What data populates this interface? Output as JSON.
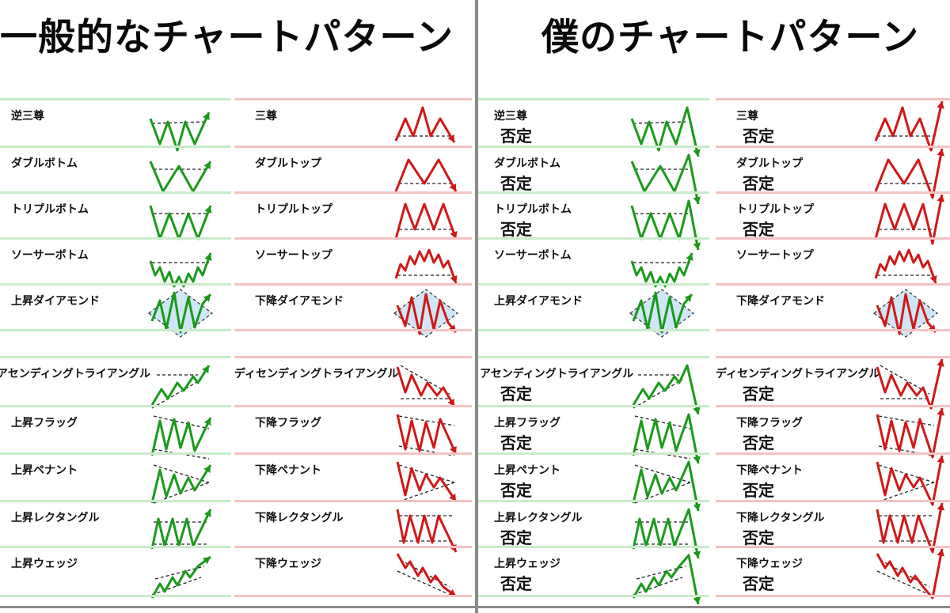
{
  "left_panel": {
    "title": "一般的なチャートパターン",
    "bullish": [
      {
        "label": "逆三尊",
        "shape": "inverse-head-shoulders-icon"
      },
      {
        "label": "ダブルボトム",
        "shape": "double-bottom-icon"
      },
      {
        "label": "トリプルボトム",
        "shape": "triple-bottom-icon"
      },
      {
        "label": "ソーサーボトム",
        "shape": "saucer-bottom-icon"
      },
      {
        "label": "上昇ダイアモンド",
        "shape": "bullish-diamond-icon"
      },
      {
        "label": "アセンディングトライアングル",
        "shape": "ascending-triangle-icon"
      },
      {
        "label": "上昇フラッグ",
        "shape": "bull-flag-icon"
      },
      {
        "label": "上昇ペナント",
        "shape": "bull-pennant-icon"
      },
      {
        "label": "上昇レクタングル",
        "shape": "bull-rectangle-icon"
      },
      {
        "label": "上昇ウェッジ",
        "shape": "rising-wedge-icon"
      }
    ],
    "bearish": [
      {
        "label": "三尊",
        "shape": "head-shoulders-icon"
      },
      {
        "label": "ダブルトップ",
        "shape": "double-top-icon"
      },
      {
        "label": "トリプルトップ",
        "shape": "triple-top-icon"
      },
      {
        "label": "ソーサートップ",
        "shape": "saucer-top-icon"
      },
      {
        "label": "下降ダイアモンド",
        "shape": "bearish-diamond-icon"
      },
      {
        "label": "ディセンディングトライアングル",
        "shape": "descending-triangle-icon"
      },
      {
        "label": "下降フラッグ",
        "shape": "bear-flag-icon"
      },
      {
        "label": "下降ペナント",
        "shape": "bear-pennant-icon"
      },
      {
        "label": "下降レクタングル",
        "shape": "bear-rectangle-icon"
      },
      {
        "label": "下降ウェッジ",
        "shape": "falling-wedge-icon"
      }
    ]
  },
  "right_panel": {
    "title": "僕のチャートパターン",
    "negate_label": "否定",
    "bullish": [
      {
        "label": "逆三尊",
        "negated": true
      },
      {
        "label": "ダブルボトム",
        "negated": true
      },
      {
        "label": "トリプルボトム",
        "negated": true
      },
      {
        "label": "ソーサーボトム",
        "negated": false
      },
      {
        "label": "上昇ダイアモンド",
        "negated": false
      },
      {
        "label": "アセンディングトライアングル",
        "negated": true
      },
      {
        "label": "上昇フラッグ",
        "negated": true
      },
      {
        "label": "上昇ペナント",
        "negated": true
      },
      {
        "label": "上昇レクタングル",
        "negated": true
      },
      {
        "label": "上昇ウェッジ",
        "negated": true
      }
    ],
    "bearish": [
      {
        "label": "三尊",
        "negated": true
      },
      {
        "label": "ダブルトップ",
        "negated": true
      },
      {
        "label": "トリプルトップ",
        "negated": true
      },
      {
        "label": "ソーサートップ",
        "negated": false
      },
      {
        "label": "下降ダイアモンド",
        "negated": false
      },
      {
        "label": "ディセンディングトライアングル",
        "negated": true
      },
      {
        "label": "下降フラッグ",
        "negated": true
      },
      {
        "label": "下降ペナント",
        "negated": true
      },
      {
        "label": "下降レクタングル",
        "negated": true
      },
      {
        "label": "下降ウェッジ",
        "negated": true
      }
    ]
  },
  "colors": {
    "bullish": "#1a9a1a",
    "bearish": "#d01818",
    "bullish_rule": "#c9ebc9",
    "bearish_rule": "#f4c2c2",
    "divider": "#8a8a8a"
  }
}
